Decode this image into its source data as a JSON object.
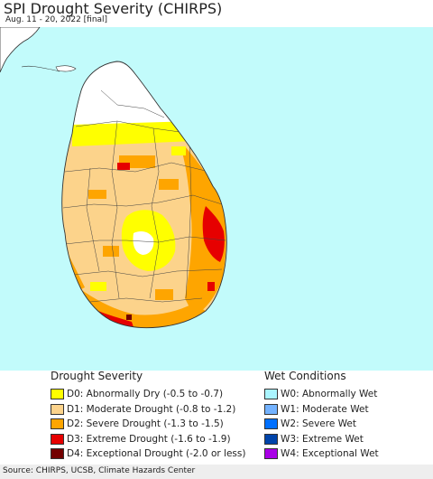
{
  "header": {
    "title": "SPI Drought Severity (CHIRPS)",
    "subtitle": "Aug. 11 - 20, 2022 [final]"
  },
  "map": {
    "colors": {
      "ocean": "#c2fbfb",
      "land": "#ffffff",
      "india_coast": "#ffffff",
      "district_border": "#444444"
    }
  },
  "legend": {
    "drought": {
      "title": "Drought Severity",
      "items": [
        {
          "label": "D0: Abnormally Dry (-0.5 to -0.7)",
          "color": "#ffff00"
        },
        {
          "label": "D1: Moderate Drought (-0.8 to -1.2)",
          "color": "#fcd38b"
        },
        {
          "label": "D2: Severe Drought (-1.3 to -1.5)",
          "color": "#fea500"
        },
        {
          "label": "D3: Extreme Drought (-1.6 to -1.9)",
          "color": "#e60000"
        },
        {
          "label": "D4: Exceptional Drought (-2.0 or less)",
          "color": "#730000"
        }
      ]
    },
    "wet": {
      "title": "Wet Conditions",
      "items": [
        {
          "label": "W0: Abnormally Wet",
          "color": "#aaf5ff"
        },
        {
          "label": "W1: Moderate Wet",
          "color": "#73b2ff"
        },
        {
          "label": "W2: Severe Wet",
          "color": "#0070ff"
        },
        {
          "label": "W3: Extreme Wet",
          "color": "#0044aa"
        },
        {
          "label": "W4: Exceptional Wet",
          "color": "#a900e6"
        }
      ]
    }
  },
  "footer": {
    "source": "Source: CHIRPS, UCSB, Climate Hazards Center"
  }
}
